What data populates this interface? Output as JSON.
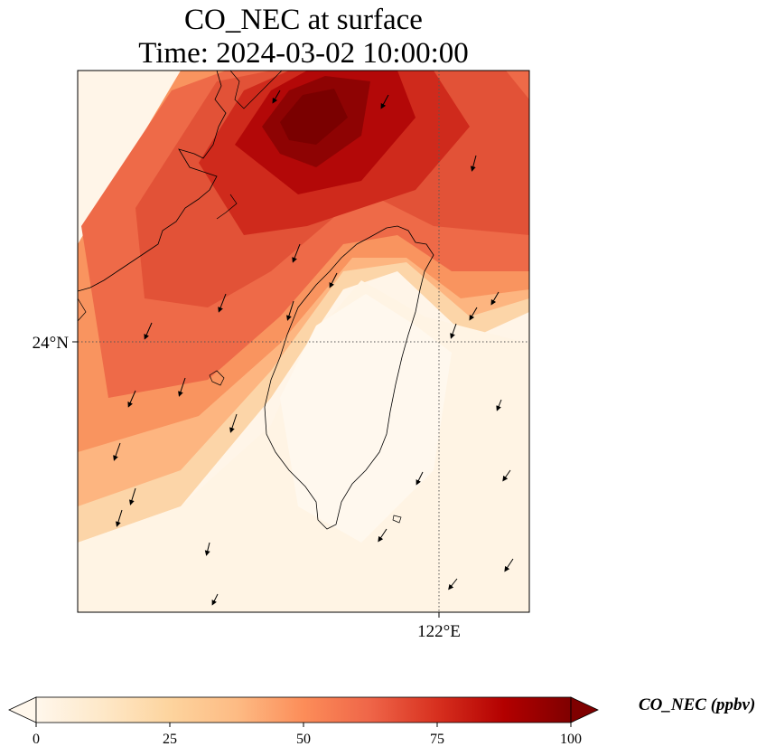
{
  "title_line1": "CO_NEC at surface",
  "title_line2": "Time: 2024-03-02 10:00:00",
  "map": {
    "lat_ticks": [
      {
        "value": 24,
        "label": "24°N"
      }
    ],
    "lon_ticks": [
      {
        "value": 122,
        "label": "122°E"
      }
    ],
    "gridlines": "dotted",
    "coastline": "Taiwan and Fujian coast",
    "wind_vectors": "black arrows, mostly pointing south-southwest"
  },
  "colorbar": {
    "label": "CO_NEC (ppbv)",
    "min": 0,
    "max": 100,
    "ticks": [
      "0",
      "25",
      "50",
      "75",
      "100"
    ],
    "colormap": "OrRd",
    "extend": "both",
    "colors": [
      "#fff7ec",
      "#fee8c8",
      "#fdd49e",
      "#fdbb84",
      "#fc8d59",
      "#ef6548",
      "#d7301f",
      "#b30000",
      "#7f0000"
    ]
  },
  "chart_data": {
    "type": "heatmap",
    "title": "CO_NEC at surface\nTime: 2024-03-02 10:00:00",
    "value_range": [
      0,
      100
    ],
    "units": "ppbv",
    "description_of_field": [
      {
        "region": "northern Taiwan Strait / north of Taiwan",
        "value": 95
      },
      {
        "region": "central Taiwan Strait band",
        "value": 60
      },
      {
        "region": "northeast of Taiwan",
        "value": 65
      },
      {
        "region": "Taiwan interior and east",
        "value": 3
      },
      {
        "region": "south and southwest",
        "value": 5
      }
    ]
  }
}
